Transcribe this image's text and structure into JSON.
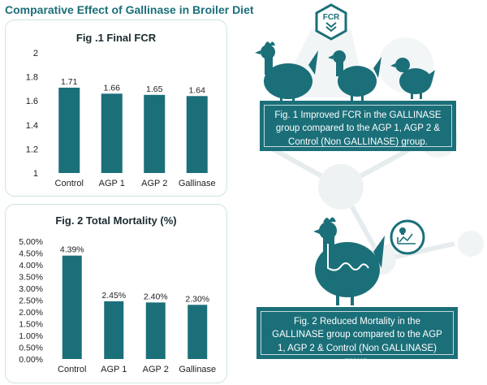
{
  "page": {
    "title": "Comparative Effect of Gallinase in Broiler Diet"
  },
  "colors": {
    "bar": "#1b6f79",
    "title": "#1b6f79",
    "panel_border": "#cfe4e2",
    "info_box": "#1b6f79"
  },
  "icons": {
    "fcr_badge_text": "FCR",
    "fcr_badge_icon": "double-chevron-down-icon",
    "mortality_badge_icon": "skull-chart-icon"
  },
  "info": {
    "fig1": "Fig. 1 Improved FCR in the GALLINASE group compared to the AGP 1, AGP 2 & Control (Non GALLINASE) group.",
    "fig2": "Fig. 2 Reduced Mortality in the GALLINASE group compared to the AGP 1, AGP 2 & Control (Non GALLINASE) group."
  },
  "chart_data": [
    {
      "type": "bar",
      "title": "Fig .1 Final FCR",
      "categories": [
        "Control",
        "AGP 1",
        "AGP 2",
        "Gallinase"
      ],
      "values": [
        1.71,
        1.66,
        1.65,
        1.64
      ],
      "value_labels": [
        "1.71",
        "1.66",
        "1.65",
        "1.64"
      ],
      "ylim": [
        1,
        2
      ],
      "yticks": [
        1,
        1.2,
        1.4,
        1.6,
        1.8,
        2
      ],
      "ytick_labels": [
        "1",
        "1.2",
        "1.4",
        "1.6",
        "1.8",
        "2"
      ],
      "grid": false,
      "legend": "none"
    },
    {
      "type": "bar",
      "title": "Fig. 2 Total Mortality (%)",
      "categories": [
        "Control",
        "AGP 1",
        "AGP 2",
        "Gallinase"
      ],
      "values": [
        4.39,
        2.45,
        2.4,
        2.3
      ],
      "value_labels": [
        "4.39%",
        "2.45%",
        "2.40%",
        "2.30%"
      ],
      "ylim": [
        0,
        5
      ],
      "yticks": [
        0,
        0.5,
        1,
        1.5,
        2,
        2.5,
        3,
        3.5,
        4,
        4.5,
        5
      ],
      "ytick_labels": [
        "0.00%",
        "0.50%",
        "1.00%",
        "1.50%",
        "2.00%",
        "2.50%",
        "3.00%",
        "3.50%",
        "4.00%",
        "4.50%",
        "5.00%"
      ],
      "grid": false,
      "legend": "none"
    }
  ]
}
